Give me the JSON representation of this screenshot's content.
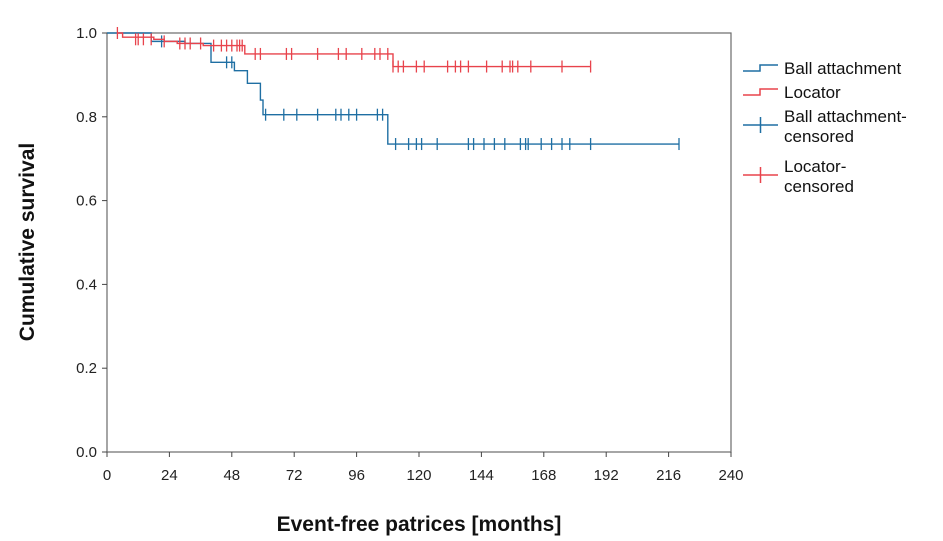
{
  "chart_data": {
    "type": "line",
    "subtype": "kaplan-meier",
    "title": "",
    "xlabel": "Event-free patrices [months]",
    "ylabel": "Cumulative survival",
    "xlim": [
      0,
      240
    ],
    "ylim": [
      0,
      1.0
    ],
    "xticks": [
      0,
      24,
      48,
      72,
      96,
      120,
      144,
      168,
      192,
      216,
      240
    ],
    "yticks": [
      0.0,
      0.2,
      0.4,
      0.6,
      0.8,
      1.0
    ],
    "xtick_labels": [
      "0",
      "24",
      "48",
      "72",
      "96",
      "120",
      "144",
      "168",
      "192",
      "216",
      "240"
    ],
    "ytick_labels": [
      "0.0",
      "0.2",
      "0.4",
      "0.6",
      "0.8",
      "1.0"
    ],
    "grid": false,
    "legend_position": "right",
    "legend": [
      {
        "label": "Ball attachment",
        "kind": "step",
        "series": "ball"
      },
      {
        "label": "Locator",
        "kind": "step",
        "series": "locator"
      },
      {
        "label": "Ball attachment-\ncensored",
        "kind": "censor",
        "series": "ball"
      },
      {
        "label": "Locator-\ncensored",
        "kind": "censor",
        "series": "locator"
      }
    ],
    "series": [
      {
        "key": "ball",
        "color": "#1f6fa3",
        "steps": [
          [
            0,
            1.0
          ],
          [
            17,
            0.98
          ],
          [
            30,
            0.975
          ],
          [
            40,
            0.93
          ],
          [
            49,
            0.91
          ],
          [
            54,
            0.88
          ],
          [
            59,
            0.84
          ],
          [
            60,
            0.805
          ],
          [
            108,
            0.805
          ],
          [
            108,
            0.735
          ],
          [
            220,
            0.735
          ]
        ],
        "censored": [
          [
            21,
            0.98
          ],
          [
            46,
            0.93
          ],
          [
            48,
            0.93
          ],
          [
            61,
            0.805
          ],
          [
            68,
            0.805
          ],
          [
            73,
            0.805
          ],
          [
            81,
            0.805
          ],
          [
            88,
            0.805
          ],
          [
            90,
            0.805
          ],
          [
            93,
            0.805
          ],
          [
            96,
            0.805
          ],
          [
            104,
            0.805
          ],
          [
            106,
            0.805
          ],
          [
            111,
            0.735
          ],
          [
            116,
            0.735
          ],
          [
            119,
            0.735
          ],
          [
            121,
            0.735
          ],
          [
            127,
            0.735
          ],
          [
            139,
            0.735
          ],
          [
            141,
            0.735
          ],
          [
            145,
            0.735
          ],
          [
            149,
            0.735
          ],
          [
            153,
            0.735
          ],
          [
            159,
            0.735
          ],
          [
            161,
            0.735
          ],
          [
            162,
            0.735
          ],
          [
            167,
            0.735
          ],
          [
            171,
            0.735
          ],
          [
            175,
            0.735
          ],
          [
            178,
            0.735
          ],
          [
            186,
            0.735
          ],
          [
            220,
            0.735
          ]
        ]
      },
      {
        "key": "locator",
        "color": "#e8434c",
        "steps": [
          [
            4,
            1.0
          ],
          [
            6,
            0.99
          ],
          [
            18,
            0.985
          ],
          [
            22,
            0.98
          ],
          [
            27,
            0.975
          ],
          [
            37,
            0.97
          ],
          [
            53,
            0.95
          ],
          [
            110,
            0.95
          ],
          [
            110,
            0.92
          ],
          [
            186,
            0.92
          ]
        ],
        "censored": [
          [
            4,
            1.0
          ],
          [
            11,
            0.985
          ],
          [
            12,
            0.985
          ],
          [
            14,
            0.985
          ],
          [
            17,
            0.985
          ],
          [
            22,
            0.98
          ],
          [
            28,
            0.975
          ],
          [
            30,
            0.975
          ],
          [
            32,
            0.975
          ],
          [
            36,
            0.975
          ],
          [
            41,
            0.97
          ],
          [
            44,
            0.97
          ],
          [
            46,
            0.97
          ],
          [
            48,
            0.97
          ],
          [
            50,
            0.97
          ],
          [
            51,
            0.97
          ],
          [
            52,
            0.97
          ],
          [
            57,
            0.95
          ],
          [
            59,
            0.95
          ],
          [
            69,
            0.95
          ],
          [
            71,
            0.95
          ],
          [
            81,
            0.95
          ],
          [
            89,
            0.95
          ],
          [
            92,
            0.95
          ],
          [
            98,
            0.95
          ],
          [
            103,
            0.95
          ],
          [
            105,
            0.95
          ],
          [
            108,
            0.95
          ],
          [
            110,
            0.92
          ],
          [
            112,
            0.92
          ],
          [
            114,
            0.92
          ],
          [
            119,
            0.92
          ],
          [
            122,
            0.92
          ],
          [
            131,
            0.92
          ],
          [
            134,
            0.92
          ],
          [
            136,
            0.92
          ],
          [
            139,
            0.92
          ],
          [
            146,
            0.92
          ],
          [
            152,
            0.92
          ],
          [
            155,
            0.92
          ],
          [
            156,
            0.92
          ],
          [
            158,
            0.92
          ],
          [
            163,
            0.92
          ],
          [
            175,
            0.92
          ],
          [
            186,
            0.92
          ]
        ]
      }
    ]
  }
}
